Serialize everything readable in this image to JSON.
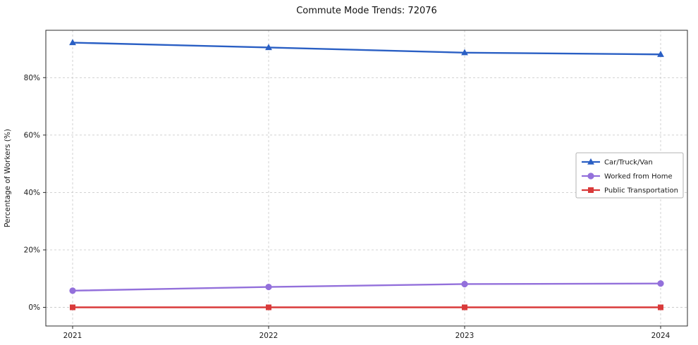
{
  "title": "Commute Mode Trends: 72076",
  "chart_data": {
    "type": "line",
    "title": "Commute Mode Trends: 72076",
    "xlabel": "",
    "ylabel": "Percentage of Workers (%)",
    "x": [
      2021,
      2022,
      2023,
      2024
    ],
    "x_tick_labels": [
      "2021",
      "2022",
      "2023",
      "2024"
    ],
    "yticks": [
      0,
      20,
      40,
      60,
      80
    ],
    "ytick_labels": [
      "0%",
      "20%",
      "40%",
      "60%",
      "80%"
    ],
    "ylim": [
      -6.5,
      96.5
    ],
    "grid": true,
    "grid_style": "dashed",
    "legend_position": "center-right",
    "series": [
      {
        "name": "Car/Truck/Van",
        "values": [
          92.2,
          90.5,
          88.7,
          88.1
        ],
        "color": "#2a5fc4",
        "marker": "triangle"
      },
      {
        "name": "Worked from Home",
        "values": [
          5.8,
          7.1,
          8.1,
          8.3
        ],
        "color": "#9370db",
        "marker": "circle"
      },
      {
        "name": "Public Transportation",
        "values": [
          0.0,
          0.0,
          0.0,
          0.0
        ],
        "color": "#d93a3a",
        "marker": "square"
      }
    ]
  }
}
